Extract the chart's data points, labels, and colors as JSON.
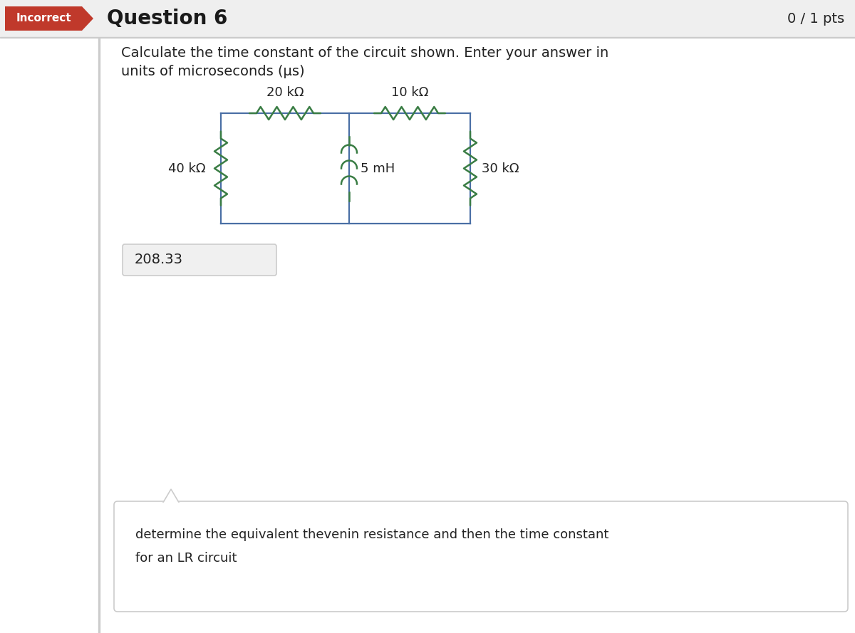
{
  "title_incorrect": "Incorrect",
  "title_question": "Question 6",
  "title_pts": "0 / 1 pts",
  "question_text_line1": "Calculate the time constant of the circuit shown. Enter your answer in",
  "question_text_line2": "units of microseconds (μs)",
  "answer_value": "208.33",
  "hint_text_line1": "determine the equivalent thevenin resistance and then the time constant",
  "hint_text_line2": "for an LR circuit",
  "resistor_40k_label": "40 kΩ",
  "resistor_20k_label": "20 kΩ",
  "resistor_10k_label": "10 kΩ",
  "resistor_30k_label": "30 kΩ",
  "inductor_label": "5 mH",
  "bg_color": "#ffffff",
  "header_bg": "#efefef",
  "incorrect_bg": "#c0392b",
  "incorrect_text": "#ffffff",
  "circuit_color": "#3a7d44",
  "circuit_line_color": "#4a6fa5",
  "text_color": "#222222",
  "header_border": "#cccccc",
  "left_border": "#cccccc",
  "ans_box_bg": "#f0f0f0",
  "ans_box_border": "#cccccc",
  "hint_box_bg": "#ffffff",
  "hint_box_border": "#cccccc"
}
